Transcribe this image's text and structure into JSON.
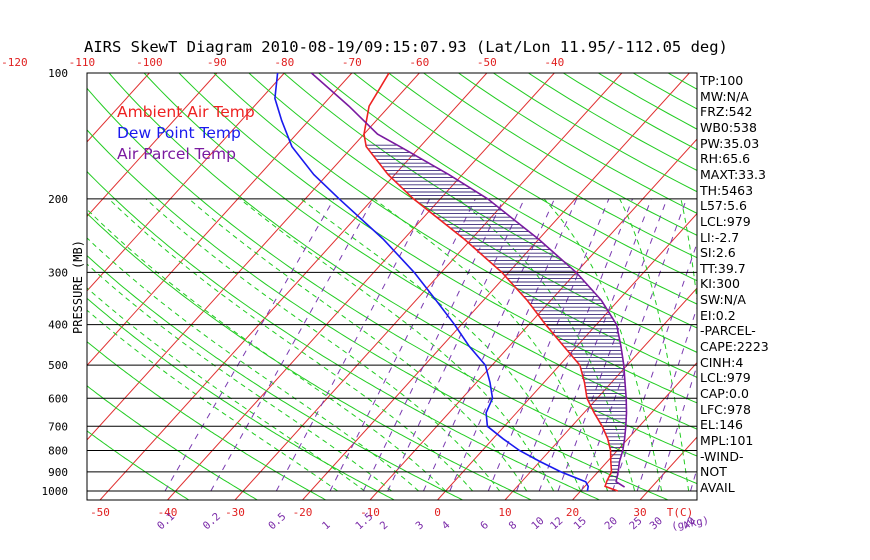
{
  "chart_data": {
    "type": "line",
    "title": "AIRS SkewT Diagram 2010-08-19/09:15:07.93 (Lat/Lon 11.95/-112.05 deg)",
    "ylabel": "PRESSURE (MB)",
    "y_scale": "log",
    "pressure_ticks": [
      100,
      200,
      300,
      400,
      500,
      600,
      700,
      800,
      900,
      1000
    ],
    "temp_bottom_ticks": [
      "-50",
      "-40",
      "-30",
      "-20",
      "-10",
      "0",
      "10",
      "20",
      "30"
    ],
    "temp_bottom_unit": "T(C)",
    "temp_top_ticks": [
      "-120",
      "-110",
      "-100",
      "-90",
      "-80",
      "-70",
      "-60",
      "-50",
      "-40"
    ],
    "mixing_ratio_ticks": [
      "0.1",
      "0.2",
      "0.5",
      "1",
      "1.5",
      "2",
      "3",
      "4",
      "6",
      "8",
      "10",
      "12",
      "15",
      "20",
      "25",
      "30",
      "40"
    ],
    "mixing_ratio_unit": "(g/kg)",
    "legend": [
      {
        "name": "Ambient Air Temp",
        "color": "#ee2222"
      },
      {
        "name": "Dew Point Temp",
        "color": "#1a1aee"
      },
      {
        "name": "Air Parcel Temp",
        "color": "#7a1aa0"
      }
    ],
    "series": [
      {
        "name": "Ambient Air Temp",
        "unit": "C",
        "points": [
          [
            1000,
            25.5
          ],
          [
            975,
            23.0
          ],
          [
            950,
            22.6
          ],
          [
            900,
            22.0
          ],
          [
            850,
            20.5
          ],
          [
            800,
            19.0
          ],
          [
            750,
            17.0
          ],
          [
            700,
            14.5
          ],
          [
            650,
            11.5
          ],
          [
            600,
            8.5
          ],
          [
            550,
            6.0
          ],
          [
            500,
            3.0
          ],
          [
            450,
            -2.0
          ],
          [
            400,
            -7.5
          ],
          [
            350,
            -13.5
          ],
          [
            300,
            -21.0
          ],
          [
            250,
            -31.0
          ],
          [
            200,
            -44.0
          ],
          [
            175,
            -51.0
          ],
          [
            150,
            -58.0
          ],
          [
            140,
            -60.0
          ],
          [
            120,
            -63.0
          ],
          [
            100,
            -64.5
          ]
        ]
      },
      {
        "name": "Dew Point Temp",
        "unit": "C",
        "points": [
          [
            1000,
            21.0
          ],
          [
            975,
            20.5
          ],
          [
            950,
            19.5
          ],
          [
            900,
            14.5
          ],
          [
            850,
            10.0
          ],
          [
            800,
            5.5
          ],
          [
            750,
            1.5
          ],
          [
            700,
            -2.5
          ],
          [
            650,
            -4.5
          ],
          [
            600,
            -5.5
          ],
          [
            550,
            -8.0
          ],
          [
            500,
            -11.0
          ],
          [
            450,
            -16.0
          ],
          [
            400,
            -21.0
          ],
          [
            350,
            -27.0
          ],
          [
            300,
            -34.0
          ],
          [
            250,
            -43.0
          ],
          [
            200,
            -55.0
          ],
          [
            175,
            -62.0
          ],
          [
            150,
            -69.0
          ],
          [
            130,
            -74.0
          ],
          [
            115,
            -78.0
          ],
          [
            100,
            -81.0
          ]
        ]
      },
      {
        "name": "Air Parcel Temp",
        "unit": "C",
        "points": [
          [
            979,
            26.0
          ],
          [
            950,
            24.0
          ],
          [
            900,
            23.0
          ],
          [
            850,
            21.8
          ],
          [
            800,
            20.8
          ],
          [
            750,
            19.5
          ],
          [
            700,
            18.0
          ],
          [
            650,
            16.3
          ],
          [
            600,
            14.3
          ],
          [
            550,
            12.0
          ],
          [
            500,
            9.5
          ],
          [
            450,
            6.5
          ],
          [
            400,
            3.0
          ],
          [
            350,
            -2.5
          ],
          [
            300,
            -10.0
          ],
          [
            250,
            -20.0
          ],
          [
            200,
            -33.0
          ],
          [
            175,
            -42.0
          ],
          [
            150,
            -53.0
          ],
          [
            140,
            -58.0
          ],
          [
            120,
            -66.0
          ],
          [
            100,
            -76.0
          ]
        ]
      }
    ],
    "stats": [
      "TP:100",
      "MW:N/A",
      "FRZ:542",
      "WB0:538",
      "PW:35.03",
      "RH:65.6",
      "MAXT:33.3",
      "TH:5463",
      "L57:5.6",
      "LCL:979",
      "LI:-2.7",
      "SI:2.6",
      "TT:39.7",
      "KI:300",
      "SW:N/A",
      "EI:0.2",
      "-PARCEL-",
      "CAPE:2223",
      "CINH:4",
      "LCL:979",
      "CAP:0.0",
      "LFC:978",
      "EL:146",
      "MPL:101",
      "-WIND-",
      "NOT",
      "AVAIL"
    ]
  }
}
